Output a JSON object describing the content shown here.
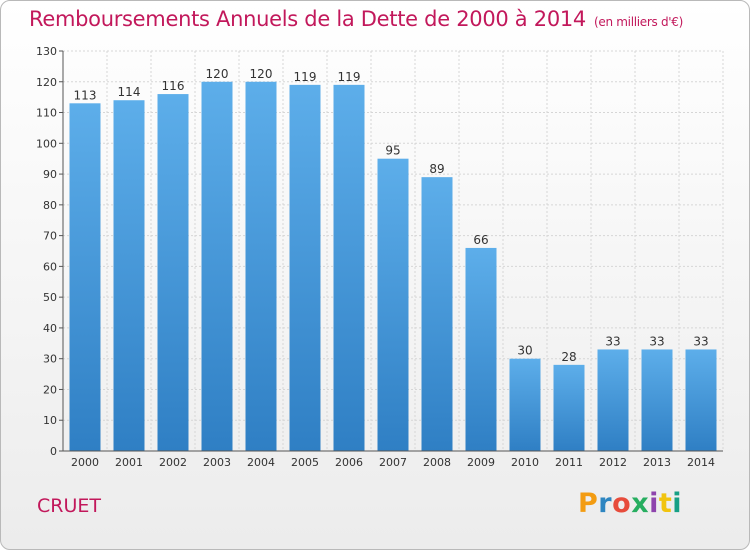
{
  "chart_data": {
    "type": "bar",
    "title": "Remboursements Annuels de la Dette de 2000 à 2014",
    "subtitle": "(en milliers d'€)",
    "categories": [
      "2000",
      "2001",
      "2002",
      "2003",
      "2004",
      "2005",
      "2006",
      "2007",
      "2008",
      "2009",
      "2010",
      "2011",
      "2012",
      "2013",
      "2014"
    ],
    "values": [
      113,
      114,
      116,
      120,
      120,
      119,
      119,
      95,
      89,
      66,
      30,
      28,
      33,
      33,
      33
    ],
    "ylim": [
      0,
      130
    ],
    "yticks": [
      0,
      10,
      20,
      30,
      40,
      50,
      60,
      70,
      80,
      90,
      100,
      110,
      120,
      130
    ],
    "grid": true,
    "bar_color": "#4a9fe0"
  },
  "footer": {
    "commune": "CRUET",
    "logo_letters": [
      {
        "char": "P",
        "color": "#f39c12"
      },
      {
        "char": "r",
        "color": "#2e86c1"
      },
      {
        "char": "o",
        "color": "#e74c3c"
      },
      {
        "char": "x",
        "color": "#27ae60"
      },
      {
        "char": "i",
        "color": "#8e44ad"
      },
      {
        "char": "t",
        "color": "#f1c40f"
      },
      {
        "char": "i",
        "color": "#16a085"
      }
    ]
  }
}
